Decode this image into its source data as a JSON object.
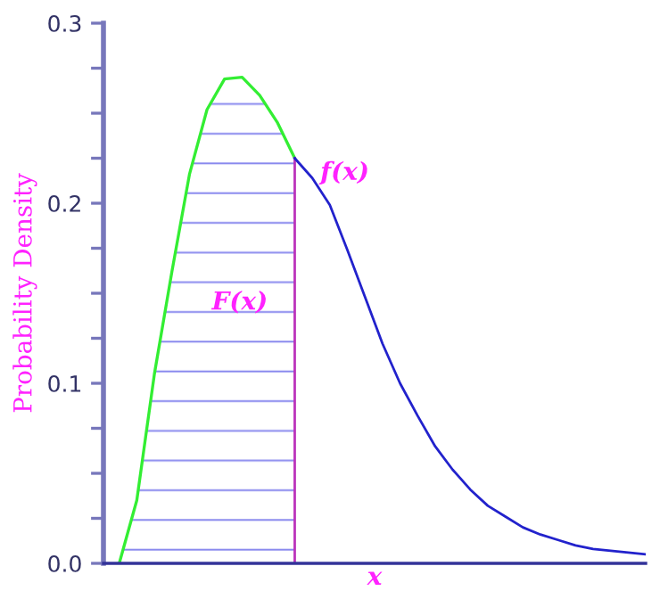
{
  "chart_data": {
    "type": "area",
    "ylabel": "Probability Density",
    "xlabel": "x",
    "categories": [
      null,
      null,
      null,
      null,
      null,
      null,
      null,
      null,
      null,
      null,
      null,
      null,
      null,
      null,
      null,
      null,
      null,
      null,
      null,
      null,
      null,
      null,
      null,
      null,
      null,
      null,
      null,
      null,
      null,
      null,
      null
    ],
    "series": [
      {
        "color": "#33ee33",
        "values": [
          0,
          0.035,
          0.105,
          0.162,
          0.216,
          0.252,
          0.269,
          0.27,
          0.26,
          0.245,
          0.225,
          null,
          null,
          null,
          null,
          null,
          null,
          null,
          null,
          null,
          null,
          null,
          null,
          null,
          null,
          null,
          null,
          null,
          null,
          null,
          null
        ]
      },
      {
        "type": "line",
        "color": "#2222cc",
        "values": [
          null,
          null,
          null,
          null,
          null,
          null,
          null,
          null,
          null,
          null,
          0.225,
          0.214,
          0.199,
          0.174,
          0.148,
          0.122,
          0.1,
          0.082,
          0.065,
          0.052,
          0.041,
          0.032,
          0.026,
          0.02,
          0.016,
          0.013,
          0.01,
          0.008,
          0.007,
          0.006,
          0.005
        ]
      }
    ],
    "annotations": [
      "f(x)",
      "F(x)"
    ],
    "ylim": [
      0,
      0.3
    ],
    "yticks": [
      {
        "value": 0,
        "label": "0.0"
      },
      {
        "value": 0.025,
        "label": null
      },
      {
        "value": 0.05,
        "label": null
      },
      {
        "value": 0.075,
        "label": null
      },
      {
        "value": 0.1,
        "label": "0.1"
      },
      {
        "value": 0.125,
        "label": null
      },
      {
        "value": 0.15,
        "label": null
      },
      {
        "value": 0.175,
        "label": null
      },
      {
        "value": 0.2,
        "label": "0.2"
      },
      {
        "value": 0.225,
        "label": null
      },
      {
        "value": 0.25,
        "label": null
      },
      {
        "value": 0.275,
        "label": null
      },
      {
        "value": 0.3,
        "label": "0.3"
      }
    ],
    "tick_labels": "y",
    "grid": false,
    "legend": false
  }
}
